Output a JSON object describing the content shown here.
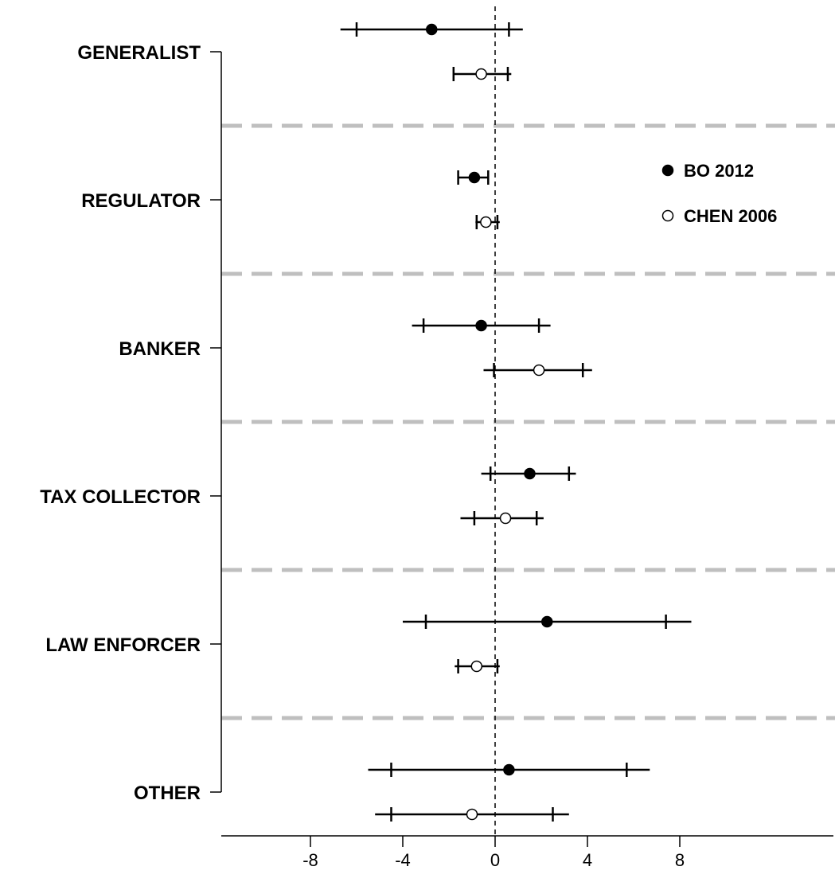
{
  "chart_data": {
    "type": "forest",
    "categories": [
      "GENERALIST",
      "REGULATOR",
      "BANKER",
      "TAX COLLECTOR",
      "LAW ENFORCER",
      "OTHER"
    ],
    "series": [
      {
        "name": "BO 2012",
        "marker": "filled",
        "points": [
          {
            "category": "GENERALIST",
            "estimate": -2.75,
            "inner": [
              -6.0,
              0.6
            ],
            "outer": [
              -6.7,
              1.2
            ]
          },
          {
            "category": "REGULATOR",
            "estimate": -0.9,
            "inner": [
              -1.6,
              -0.3
            ],
            "outer": [
              -1.6,
              -0.3
            ]
          },
          {
            "category": "BANKER",
            "estimate": -0.6,
            "inner": [
              -3.1,
              1.9
            ],
            "outer": [
              -3.6,
              2.4
            ]
          },
          {
            "category": "TAX COLLECTOR",
            "estimate": 1.5,
            "inner": [
              -0.2,
              3.2
            ],
            "outer": [
              -0.6,
              3.5
            ]
          },
          {
            "category": "LAW ENFORCER",
            "estimate": 2.25,
            "inner": [
              -3.0,
              7.4
            ],
            "outer": [
              -4.0,
              8.5
            ]
          },
          {
            "category": "OTHER",
            "estimate": 0.6,
            "inner": [
              -4.5,
              5.7
            ],
            "outer": [
              -5.5,
              6.7
            ]
          }
        ]
      },
      {
        "name": "CHEN 2006",
        "marker": "open",
        "points": [
          {
            "category": "GENERALIST",
            "estimate": -0.6,
            "inner": [
              -1.8,
              0.55
            ],
            "outer": [
              -1.8,
              0.7
            ]
          },
          {
            "category": "REGULATOR",
            "estimate": -0.4,
            "inner": [
              -0.8,
              0.1
            ],
            "outer": [
              -0.85,
              0.2
            ]
          },
          {
            "category": "BANKER",
            "estimate": 1.9,
            "inner": [
              -0.05,
              3.8
            ],
            "outer": [
              -0.5,
              4.2
            ]
          },
          {
            "category": "TAX COLLECTOR",
            "estimate": 0.45,
            "inner": [
              -0.9,
              1.8
            ],
            "outer": [
              -1.5,
              2.1
            ]
          },
          {
            "category": "LAW ENFORCER",
            "estimate": -0.8,
            "inner": [
              -1.6,
              0.1
            ],
            "outer": [
              -1.75,
              0.2
            ]
          },
          {
            "category": "OTHER",
            "estimate": -1.0,
            "inner": [
              -4.5,
              2.5
            ],
            "outer": [
              -5.2,
              3.2
            ]
          }
        ]
      }
    ],
    "xticks": [
      -8,
      -4,
      0,
      4,
      8
    ],
    "xtick_labels": [
      "-8",
      "-4",
      "0",
      "4",
      "8"
    ],
    "xlim": [
      -8.6,
      11.2
    ],
    "reference_line": 0,
    "legend_position": "top-right",
    "colors": {
      "markers": "#000000",
      "group_separators": "#bfbfbf",
      "reference_line": "#000000"
    }
  }
}
